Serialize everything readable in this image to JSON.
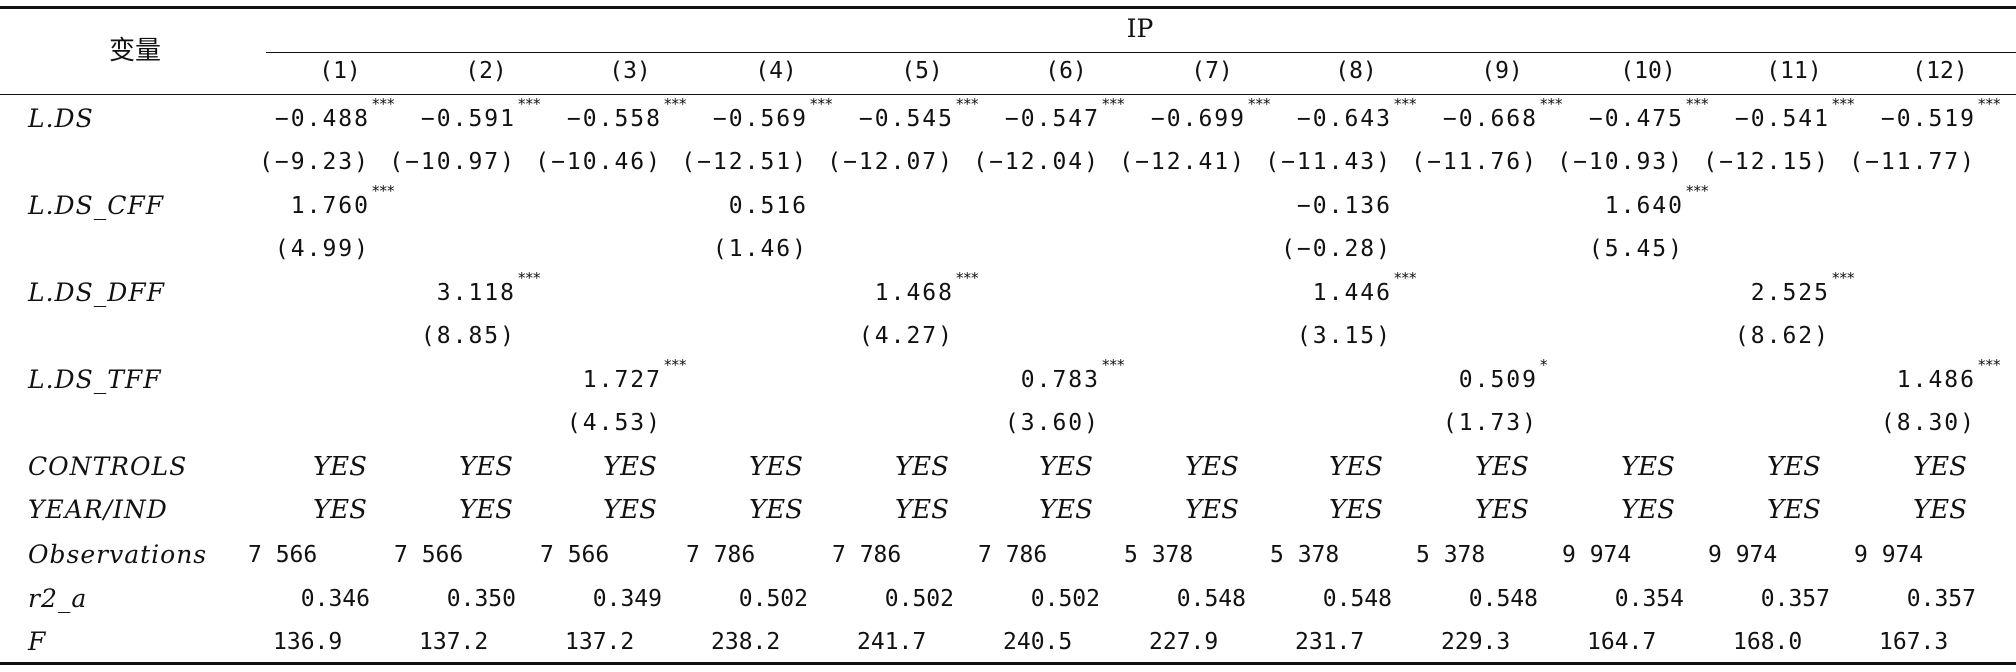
{
  "header": {
    "var_label": "变量",
    "group_label": "IP",
    "columns": [
      "(1)",
      "(2)",
      "(3)",
      "(4)",
      "(5)",
      "(6)",
      "(7)",
      "(8)",
      "(9)",
      "(10)",
      "(11)",
      "(12)"
    ]
  },
  "rows": {
    "lds": {
      "label": "L.DS",
      "coef": [
        "−0.488",
        "−0.591",
        "−0.558",
        "−0.569",
        "−0.545",
        "−0.547",
        "−0.699",
        "−0.643",
        "−0.668",
        "−0.475",
        "−0.541",
        "−0.519"
      ],
      "stars": [
        "***",
        "***",
        "***",
        "***",
        "***",
        "***",
        "***",
        "***",
        "***",
        "***",
        "***",
        "***"
      ],
      "t": [
        "(−9.23)",
        "(−10.97)",
        "(−10.46)",
        "(−12.51)",
        "(−12.07)",
        "(−12.04)",
        "(−12.41)",
        "(−11.43)",
        "(−11.76)",
        "(−10.93)",
        "(−12.15)",
        "(−11.77)"
      ]
    },
    "cff": {
      "label": "L.DS_CFF",
      "coef": [
        "1.760",
        "",
        "",
        "0.516",
        "",
        "",
        "",
        "−0.136",
        "",
        "1.640",
        "",
        ""
      ],
      "stars": [
        "***",
        "",
        "",
        "",
        "",
        "",
        "",
        "",
        "",
        "***",
        "",
        ""
      ],
      "t": [
        "(4.99)",
        "",
        "",
        "(1.46)",
        "",
        "",
        "",
        "(−0.28)",
        "",
        "(5.45)",
        "",
        ""
      ]
    },
    "dff": {
      "label": "L.DS_DFF",
      "coef": [
        "",
        "3.118",
        "",
        "",
        "1.468",
        "",
        "",
        "1.446",
        "",
        "",
        "2.525",
        ""
      ],
      "stars": [
        "",
        "***",
        "",
        "",
        "***",
        "",
        "",
        "***",
        "",
        "",
        "***",
        ""
      ],
      "t": [
        "",
        "(8.85)",
        "",
        "",
        "(4.27)",
        "",
        "",
        "(3.15)",
        "",
        "",
        "(8.62)",
        ""
      ]
    },
    "tff": {
      "label": "L.DS_TFF",
      "coef": [
        "",
        "",
        "1.727",
        "",
        "",
        "0.783",
        "",
        "",
        "0.509",
        "",
        "",
        "1.486"
      ],
      "stars": [
        "",
        "",
        "***",
        "",
        "",
        "***",
        "",
        "",
        "*",
        "",
        "",
        "***"
      ],
      "t": [
        "",
        "",
        "(4.53)",
        "",
        "",
        "(3.60)",
        "",
        "",
        "(1.73)",
        "",
        "",
        "(8.30)"
      ]
    },
    "controls": {
      "label": "CONTROLS",
      "values": [
        "YES",
        "YES",
        "YES",
        "YES",
        "YES",
        "YES",
        "YES",
        "YES",
        "YES",
        "YES",
        "YES",
        "YES"
      ]
    },
    "yearind": {
      "label": "YEAR/IND",
      "values": [
        "YES",
        "YES",
        "YES",
        "YES",
        "YES",
        "YES",
        "YES",
        "YES",
        "YES",
        "YES",
        "YES",
        "YES"
      ]
    },
    "obs": {
      "label": "Observations",
      "values": [
        "7 566",
        "7 566",
        "7 566",
        "7 786",
        "7 786",
        "7 786",
        "5 378",
        "5 378",
        "5 378",
        "9 974",
        "9 974",
        "9 974"
      ]
    },
    "r2": {
      "label": "r2_a",
      "values": [
        "0.346",
        "0.350",
        "0.349",
        "0.502",
        "0.502",
        "0.502",
        "0.548",
        "0.548",
        "0.548",
        "0.354",
        "0.357",
        "0.357"
      ]
    },
    "f": {
      "label": "F",
      "values": [
        "136.9",
        "137.2",
        "137.2",
        "238.2",
        "241.7",
        "240.5",
        "227.9",
        "231.7",
        "229.3",
        "164.7",
        "168.0",
        "167.3"
      ]
    }
  }
}
